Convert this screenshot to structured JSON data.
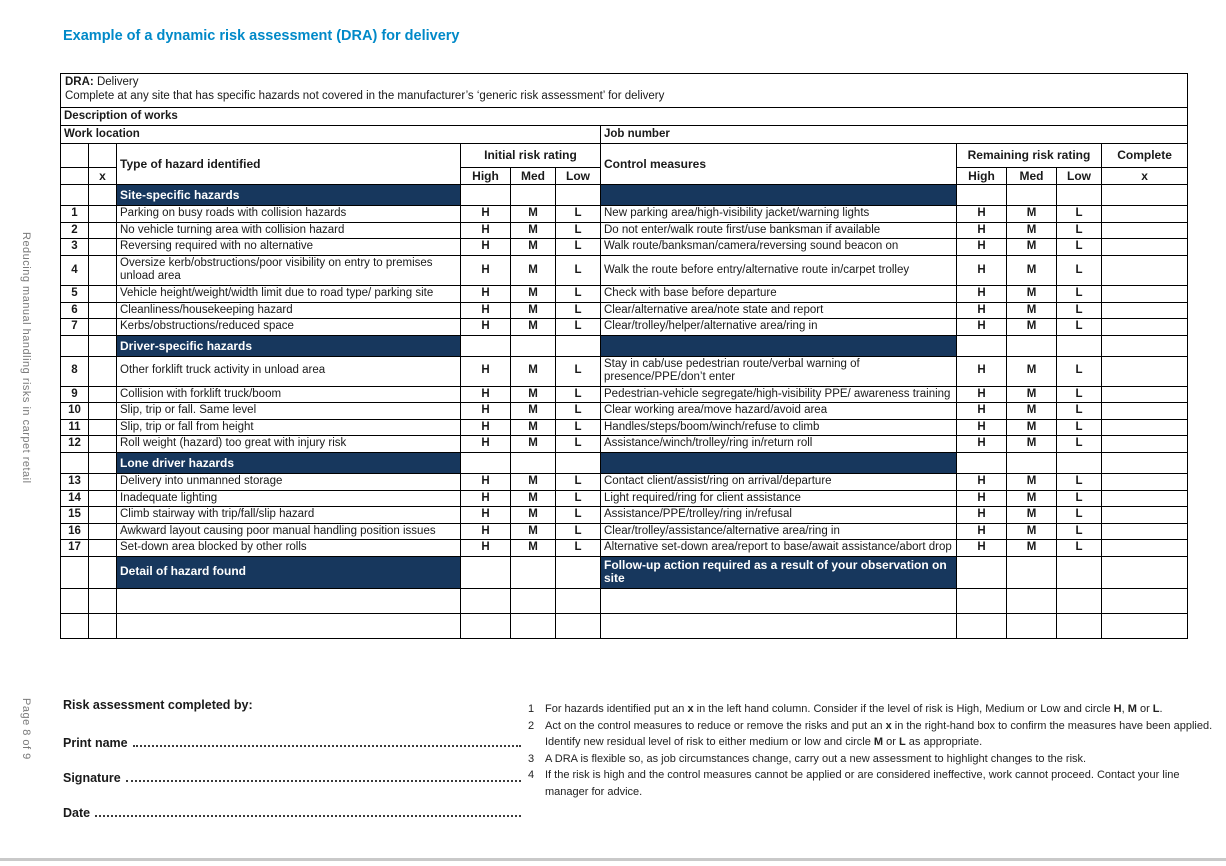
{
  "page": {
    "title": "Example of a dynamic risk assessment (DRA) for delivery",
    "sidebar_text": "Reducing manual handling risks in carpet retail",
    "page_label": "Page 8 of 9"
  },
  "colors": {
    "title_blue": "#0089c8",
    "section_navy": "#17375d",
    "bottom_strip_grey": "#c9c9c9"
  },
  "form": {
    "dra_label": "DRA:",
    "dra_value": " Delivery",
    "dra_instruction": "Complete at any site that has specific hazards not covered in the manufacturer’s ‘generic risk assessment’ for delivery",
    "description_of_works": "Description of works",
    "work_location": "Work location",
    "job_number": "Job number"
  },
  "table": {
    "headers": {
      "type_of_hazard": "Type of hazard identified",
      "x_mark": "x",
      "initial_risk_rating": "Initial risk rating",
      "control_measures": "Control measures",
      "remaining_risk_rating": "Remaining risk rating",
      "complete": "Complete",
      "high": "High",
      "med": "Med",
      "low": "Low",
      "complete_x": "x"
    },
    "rating_letters": [
      "H",
      "M",
      "L"
    ],
    "sections": [
      {
        "title": "Site-specific hazards",
        "rows": [
          {
            "num": "1",
            "hazard": "Parking on busy roads with collision hazards",
            "control": "New parking area/high-visibility jacket/warning lights"
          },
          {
            "num": "2",
            "hazard": "No vehicle turning area with collision hazard",
            "control": "Do not enter/walk route first/use banksman if available"
          },
          {
            "num": "3",
            "hazard": "Reversing required with no alternative",
            "control": "Walk route/banksman/camera/reversing sound beacon on"
          },
          {
            "num": "4",
            "hazard": "Oversize kerb/obstructions/poor visibility on entry to premises unload area",
            "control": "Walk the route before entry/alternative route in/carpet trolley"
          },
          {
            "num": "5",
            "hazard": "Vehicle height/weight/width limit due to road type/ parking site",
            "control": "Check with base before departure"
          },
          {
            "num": "6",
            "hazard": "Cleanliness/housekeeping hazard",
            "control": "Clear/alternative area/note state and report"
          },
          {
            "num": "7",
            "hazard": "Kerbs/obstructions/reduced space",
            "control": "Clear/trolley/helper/alternative area/ring in"
          }
        ]
      },
      {
        "title": "Driver-specific hazards",
        "rows": [
          {
            "num": "8",
            "hazard": "Other forklift truck activity in unload area",
            "control": "Stay in cab/use pedestrian route/verbal warning of presence/PPE/don’t enter"
          },
          {
            "num": "9",
            "hazard": "Collision with forklift truck/boom",
            "control": "Pedestrian-vehicle segregate/high-visibility PPE/ awareness training"
          },
          {
            "num": "10",
            "hazard": "Slip, trip or fall.  Same level",
            "control": "Clear working area/move hazard/avoid area"
          },
          {
            "num": "11",
            "hazard": "Slip, trip or fall from height",
            "control": "Handles/steps/boom/winch/refuse to climb"
          },
          {
            "num": "12",
            "hazard": "Roll weight (hazard) too great with injury risk",
            "control": "Assistance/winch/trolley/ring in/return roll"
          }
        ]
      },
      {
        "title": "Lone driver hazards",
        "rows": [
          {
            "num": "13",
            "hazard": "Delivery into unmanned storage",
            "control": "Contact client/assist/ring on arrival/departure"
          },
          {
            "num": "14",
            "hazard": "Inadequate lighting",
            "control": "Light required/ring for client assistance"
          },
          {
            "num": "15",
            "hazard": "Climb stairway with trip/fall/slip hazard",
            "control": "Assistance/PPE/trolley/ring in/refusal"
          },
          {
            "num": "16",
            "hazard": "Awkward layout causing poor manual handling position issues",
            "control": "Clear/trolley/assistance/alternative area/ring in"
          },
          {
            "num": "17",
            "hazard": "Set-down area blocked by other rolls",
            "control": "Alternative set-down area/report to base/await assistance/abort drop"
          }
        ]
      }
    ],
    "detail_row": {
      "left": "Detail of hazard found",
      "right": "Follow-up action required as a result of your observation on site"
    },
    "empty_rows": 2
  },
  "footer": {
    "completed_by": "Risk assessment completed by:",
    "print_name": "Print name",
    "signature": "Signature",
    "date": "Date",
    "notes": [
      {
        "num": "1",
        "segments": [
          {
            "t": "For hazards identified put an "
          },
          {
            "t": "x",
            "b": true
          },
          {
            "t": " in the left hand column. Consider if the level of risk is High, Medium or Low and circle "
          },
          {
            "t": "H",
            "b": true
          },
          {
            "t": ", "
          },
          {
            "t": "M",
            "b": true
          },
          {
            "t": " or "
          },
          {
            "t": "L",
            "b": true
          },
          {
            "t": "."
          }
        ]
      },
      {
        "num": "2",
        "segments": [
          {
            "t": "Act on the control measures to reduce or remove the risks and put an "
          },
          {
            "t": "x",
            "b": true
          },
          {
            "t": " in the right-hand box to confirm the measures have been applied. Identify new residual level of risk to either medium or low and circle "
          },
          {
            "t": "M",
            "b": true
          },
          {
            "t": " or "
          },
          {
            "t": "L",
            "b": true
          },
          {
            "t": " as appropriate."
          }
        ]
      },
      {
        "num": "3",
        "segments": [
          {
            "t": "A DRA is flexible so, as job circumstances change, carry out a new assessment to highlight changes to the risk."
          }
        ]
      },
      {
        "num": "4",
        "segments": [
          {
            "t": "If the risk is high and the control measures cannot be applied or are considered ineffective, work cannot proceed. Contact your line manager for advice."
          }
        ]
      }
    ]
  }
}
